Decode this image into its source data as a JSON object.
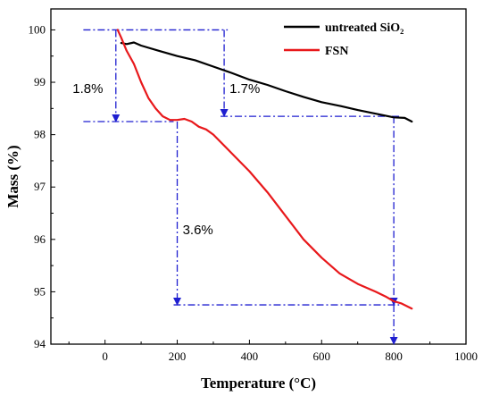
{
  "chart_data": {
    "type": "line",
    "xlabel": "Temperature (°C)",
    "ylabel": "Mass (%)",
    "xlim": [
      -150,
      1000
    ],
    "ylim": [
      94,
      100.4
    ],
    "xticks": [
      0,
      200,
      400,
      600,
      800,
      1000
    ],
    "yticks": [
      94,
      95,
      96,
      97,
      98,
      99,
      100
    ],
    "grid": false,
    "legend_position": "top-right",
    "series": [
      {
        "name": "untreated SiO₂",
        "color": "#000000",
        "x": [
          45,
          60,
          80,
          100,
          150,
          200,
          250,
          300,
          350,
          400,
          450,
          500,
          550,
          600,
          650,
          700,
          750,
          800,
          830,
          850
        ],
        "y": [
          99.75,
          99.73,
          99.76,
          99.7,
          99.6,
          99.5,
          99.42,
          99.3,
          99.18,
          99.05,
          98.95,
          98.83,
          98.72,
          98.62,
          98.55,
          98.47,
          98.4,
          98.33,
          98.32,
          98.25
        ]
      },
      {
        "name": "FSN",
        "color": "#e8181b",
        "x": [
          35,
          45,
          60,
          80,
          100,
          120,
          140,
          160,
          180,
          200,
          220,
          240,
          260,
          280,
          300,
          350,
          400,
          450,
          500,
          550,
          600,
          650,
          700,
          750,
          780,
          800,
          820,
          850
        ],
        "y": [
          100.0,
          99.85,
          99.6,
          99.35,
          99.0,
          98.7,
          98.5,
          98.35,
          98.28,
          98.28,
          98.3,
          98.25,
          98.15,
          98.1,
          98.0,
          97.65,
          97.3,
          96.9,
          96.45,
          96.0,
          95.65,
          95.35,
          95.15,
          95.0,
          94.9,
          94.82,
          94.78,
          94.68
        ]
      }
    ],
    "reference_lines": [
      {
        "x": [
          -60,
          340
        ],
        "y": [
          100.0,
          100.0
        ]
      },
      {
        "x": [
          -60,
          190
        ],
        "y": [
          98.25,
          98.25
        ]
      },
      {
        "x": [
          190,
          815
        ],
        "y": [
          94.75,
          94.75
        ]
      },
      {
        "x": [
          320,
          815
        ],
        "y": [
          98.35,
          98.35
        ]
      }
    ],
    "reference_arrows": [
      {
        "x": [
          30,
          30
        ],
        "y": [
          100.0,
          98.25
        ]
      },
      {
        "x": [
          330,
          330
        ],
        "y": [
          100.0,
          98.35
        ]
      },
      {
        "x": [
          200,
          200
        ],
        "y": [
          98.25,
          94.75
        ]
      },
      {
        "x": [
          800,
          800
        ],
        "y": [
          98.35,
          94.75
        ]
      },
      {
        "x": [
          800,
          800
        ],
        "y": [
          94.75,
          94.0
        ]
      }
    ],
    "annotations": [
      {
        "text": "1.8%",
        "x": -90,
        "y": 98.8
      },
      {
        "text": "1.7%",
        "x": 345,
        "y": 98.8
      },
      {
        "text": "3.6%",
        "x": 215,
        "y": 96.1
      }
    ],
    "reference_line_color": "#1f1fd0"
  }
}
